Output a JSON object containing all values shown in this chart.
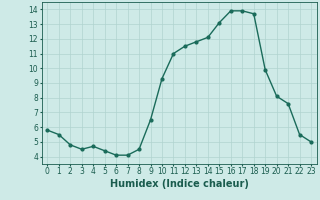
{
  "x": [
    0,
    1,
    2,
    3,
    4,
    5,
    6,
    7,
    8,
    9,
    10,
    11,
    12,
    13,
    14,
    15,
    16,
    17,
    18,
    19,
    20,
    21,
    22,
    23
  ],
  "y": [
    5.8,
    5.5,
    4.8,
    4.5,
    4.7,
    4.4,
    4.1,
    4.1,
    4.5,
    6.5,
    9.3,
    11.0,
    11.5,
    11.8,
    12.1,
    13.1,
    13.9,
    13.9,
    13.7,
    9.9,
    8.1,
    7.6,
    5.5,
    5.0
  ],
  "line_color": "#1a6b5a",
  "marker": "o",
  "marker_size": 2.0,
  "line_width": 1.0,
  "bg_color": "#ceeae7",
  "grid_color": "#b0d4d0",
  "xlabel": "Humidex (Indice chaleur)",
  "xlim": [
    -0.5,
    23.5
  ],
  "ylim": [
    3.5,
    14.5
  ],
  "yticks": [
    4,
    5,
    6,
    7,
    8,
    9,
    10,
    11,
    12,
    13,
    14
  ],
  "xticks": [
    0,
    1,
    2,
    3,
    4,
    5,
    6,
    7,
    8,
    9,
    10,
    11,
    12,
    13,
    14,
    15,
    16,
    17,
    18,
    19,
    20,
    21,
    22,
    23
  ],
  "tick_label_color": "#1a5c4e",
  "xlabel_color": "#1a5c4e",
  "xlabel_fontsize": 7,
  "tick_fontsize": 5.5
}
